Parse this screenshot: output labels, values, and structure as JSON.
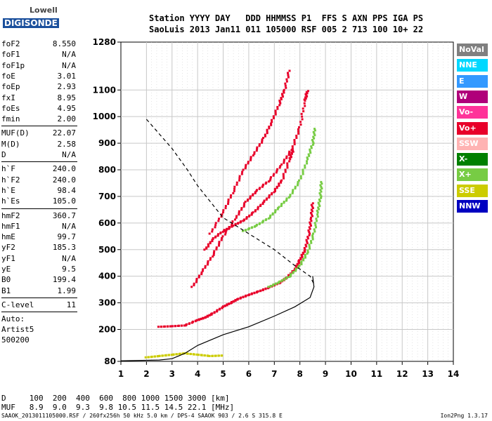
{
  "logo": {
    "top": "Lowell",
    "bottom": "DIGISONDE"
  },
  "header": {
    "line1": "Station YYYY DAY   DDD HHMMSS P1  FFS S AXN PPS IGA PS",
    "line2": "SaoLuis 2013 Jan11 011 105000 RSF 005 2 713 100 10+ 22"
  },
  "params": {
    "group1": [
      {
        "label": "foF2",
        "value": "8.550"
      },
      {
        "label": "foF1",
        "value": "N/A"
      },
      {
        "label": "foF1p",
        "value": "N/A"
      },
      {
        "label": "foE",
        "value": "3.01"
      },
      {
        "label": "foEp",
        "value": "2.93"
      },
      {
        "label": "fxI",
        "value": "8.95"
      },
      {
        "label": "foEs",
        "value": "4.95"
      },
      {
        "label": "fmin",
        "value": "2.00"
      }
    ],
    "group2": [
      {
        "label": "MUF(D)",
        "value": "22.07"
      },
      {
        "label": "M(D)",
        "value": "2.58"
      },
      {
        "label": "D",
        "value": "N/A"
      }
    ],
    "group3": [
      {
        "label": "h`F",
        "value": "240.0"
      },
      {
        "label": "h`F2",
        "value": "240.0"
      },
      {
        "label": "h`E",
        "value": "98.4"
      },
      {
        "label": "h`Es",
        "value": "105.0"
      }
    ],
    "group4": [
      {
        "label": "hmF2",
        "value": "360.7"
      },
      {
        "label": "hmF1",
        "value": "N/A"
      },
      {
        "label": "hmE",
        "value": "99.7"
      },
      {
        "label": "yF2",
        "value": "185.3"
      },
      {
        "label": "yF1",
        "value": "N/A"
      },
      {
        "label": "yE",
        "value": "9.5"
      },
      {
        "label": "B0",
        "value": "199.4"
      },
      {
        "label": "B1",
        "value": "1.99"
      }
    ],
    "group5": [
      {
        "label": "C-level",
        "value": "11"
      }
    ],
    "auto": [
      "Auto:",
      "Artist5",
      "500200"
    ]
  },
  "legend": [
    {
      "label": "NoVal",
      "bg": "#808080",
      "fg": "#ffffff"
    },
    {
      "label": "NNE",
      "bg": "#00d8ff",
      "fg": "#ffffff"
    },
    {
      "label": "E",
      "bg": "#3399ff",
      "fg": "#ffffff"
    },
    {
      "label": "W",
      "bg": "#b0007a",
      "fg": "#ffffff"
    },
    {
      "label": "Vo-",
      "bg": "#ff3399",
      "fg": "#ffffff"
    },
    {
      "label": "Vo+",
      "bg": "#e8002a",
      "fg": "#ffffff"
    },
    {
      "label": "SSW",
      "bg": "#ffb3b3",
      "fg": "#ffffff"
    },
    {
      "label": "X-",
      "bg": "#008000",
      "fg": "#ffffff"
    },
    {
      "label": "X+",
      "bg": "#77cc44",
      "fg": "#ffffff"
    },
    {
      "label": "SSE",
      "bg": "#cccc00",
      "fg": "#ffffff"
    },
    {
      "label": "NNW",
      "bg": "#0000c0",
      "fg": "#ffffff"
    }
  ],
  "footer": {
    "d_line": "D     100  200  400  600  800 1000 1500 3000 [km]",
    "muf_line": "MUF   8.9  9.0  9.3  9.8 10.5 11.5 14.5 22.1 [MHz]",
    "info_line": "SAAOK_2013011105000.RSF / 260fx256h 50 kHz 5.0 km / DPS-4 SAAOK 903 / 2.6 S 315.8 E",
    "version": "Ion2Png 1.3.17"
  },
  "chart_data": {
    "type": "scatter",
    "x_ticks": [
      "1",
      "2",
      "3",
      "4",
      "5",
      "6",
      "7",
      "8",
      "9",
      "10",
      "11",
      "12",
      "13",
      "14"
    ],
    "y_ticks": [
      "80",
      "200",
      "300",
      "400",
      "500",
      "600",
      "700",
      "800",
      "900",
      "1000",
      "1100",
      "1280"
    ],
    "xlim": [
      1,
      14
    ],
    "ylim": [
      80,
      1280
    ],
    "grid": true,
    "x_unit": "MHz",
    "y_unit": "km",
    "series": [
      {
        "role": "trace-o",
        "color": "#e8002a",
        "points": [
          [
            2.5,
            210
          ],
          [
            3.0,
            212
          ],
          [
            3.5,
            215
          ],
          [
            4.0,
            235
          ],
          [
            4.3,
            245
          ],
          [
            4.6,
            260
          ],
          [
            5.0,
            285
          ],
          [
            5.3,
            300
          ],
          [
            5.6,
            315
          ],
          [
            6.0,
            330
          ],
          [
            6.4,
            343
          ],
          [
            6.8,
            358
          ],
          [
            7.2,
            375
          ],
          [
            7.5,
            395
          ],
          [
            7.8,
            425
          ],
          [
            8.0,
            460
          ],
          [
            8.2,
            500
          ],
          [
            8.35,
            560
          ],
          [
            8.45,
            620
          ],
          [
            8.5,
            680
          ]
        ]
      },
      {
        "role": "trace-x",
        "color": "#77cc44",
        "points": [
          [
            6.8,
            360
          ],
          [
            7.2,
            378
          ],
          [
            7.6,
            400
          ],
          [
            8.0,
            440
          ],
          [
            8.3,
            490
          ],
          [
            8.55,
            560
          ],
          [
            8.7,
            640
          ],
          [
            8.8,
            700
          ],
          [
            8.85,
            760
          ]
        ]
      },
      {
        "role": "multihop-2",
        "color": "#e8002a",
        "points": [
          [
            4.3,
            500
          ],
          [
            4.6,
            540
          ],
          [
            5.0,
            570
          ],
          [
            5.4,
            590
          ],
          [
            5.8,
            610
          ],
          [
            6.2,
            640
          ],
          [
            6.6,
            680
          ],
          [
            7.0,
            720
          ],
          [
            7.3,
            760
          ],
          [
            7.6,
            840
          ],
          [
            7.75,
            880
          ]
        ]
      },
      {
        "role": "multihop-2x",
        "color": "#77cc44",
        "points": [
          [
            5.8,
            570
          ],
          [
            6.3,
            590
          ],
          [
            6.8,
            620
          ],
          [
            7.2,
            660
          ],
          [
            7.6,
            700
          ],
          [
            8.0,
            760
          ],
          [
            8.3,
            840
          ],
          [
            8.5,
            900
          ],
          [
            8.6,
            960
          ]
        ]
      },
      {
        "role": "multihop-3",
        "color": "#e8002a",
        "points": [
          [
            3.8,
            360
          ],
          [
            4.2,
            420
          ],
          [
            4.6,
            480
          ],
          [
            5.0,
            550
          ],
          [
            5.5,
            620
          ],
          [
            5.9,
            680
          ],
          [
            6.3,
            720
          ],
          [
            6.8,
            760
          ],
          [
            7.3,
            820
          ],
          [
            7.7,
            880
          ],
          [
            8.0,
            960
          ],
          [
            8.2,
            1060
          ],
          [
            8.3,
            1100
          ]
        ]
      },
      {
        "role": "multihop-4",
        "color": "#e8002a",
        "points": [
          [
            4.5,
            560
          ],
          [
            5.0,
            640
          ],
          [
            5.4,
            720
          ],
          [
            5.8,
            800
          ],
          [
            6.2,
            860
          ],
          [
            6.6,
            920
          ],
          [
            6.9,
            980
          ],
          [
            7.2,
            1050
          ],
          [
            7.4,
            1100
          ],
          [
            7.6,
            1180
          ]
        ]
      },
      {
        "role": "E-layer",
        "color": "#cccc00",
        "points": [
          [
            2.0,
            95
          ],
          [
            2.5,
            100
          ],
          [
            3.0,
            105
          ],
          [
            3.5,
            110
          ],
          [
            4.0,
            105
          ],
          [
            4.5,
            100
          ],
          [
            5.0,
            102
          ]
        ]
      }
    ],
    "profile_line": {
      "color": "#000000",
      "points": [
        [
          1.0,
          82
        ],
        [
          2.5,
          85
        ],
        [
          3.0,
          90
        ],
        [
          3.5,
          110
        ],
        [
          4.0,
          140
        ],
        [
          4.5,
          160
        ],
        [
          5.0,
          180
        ],
        [
          6.0,
          210
        ],
        [
          7.0,
          250
        ],
        [
          7.8,
          285
        ],
        [
          8.4,
          320
        ],
        [
          8.55,
          360
        ],
        [
          8.5,
          400
        ]
      ]
    },
    "dashed_line": {
      "color": "#000000",
      "points": [
        [
          2.0,
          990
        ],
        [
          3.0,
          880
        ],
        [
          3.6,
          800
        ],
        [
          4.0,
          740
        ],
        [
          4.5,
          680
        ],
        [
          5.0,
          620
        ],
        [
          6.0,
          560
        ],
        [
          7.0,
          500
        ],
        [
          7.8,
          440
        ],
        [
          8.4,
          400
        ],
        [
          8.55,
          370
        ]
      ]
    }
  }
}
